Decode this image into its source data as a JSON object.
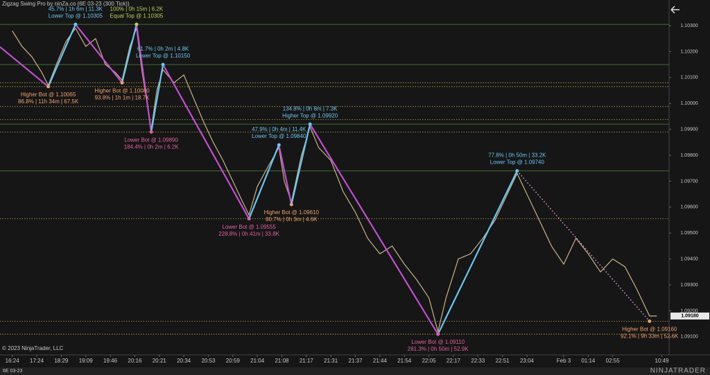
{
  "header": {
    "title": "Zigzag Swing Pro by ninZa.co (6E 03-23 (300 Tick))",
    "copyright": "© 2023 NinjaTrader, LLC",
    "tab": "6E 03-23",
    "logo": "NINJATRADER"
  },
  "chart_data": {
    "type": "line",
    "xlim": [
      -0.5,
      26.8
    ],
    "ylim": [
      1.0903,
      1.10399
    ],
    "xticks": [
      {
        "value": 0,
        "label": "16:24"
      },
      {
        "value": 1,
        "label": "17:24"
      },
      {
        "value": 2,
        "label": "18:29"
      },
      {
        "value": 3,
        "label": "19:09"
      },
      {
        "value": 4,
        "label": "19:46"
      },
      {
        "value": 5,
        "label": "20:16"
      },
      {
        "value": 6,
        "label": "20:21"
      },
      {
        "value": 7,
        "label": "20:34"
      },
      {
        "value": 8,
        "label": "20:53"
      },
      {
        "value": 9,
        "label": "20:59"
      },
      {
        "value": 10,
        "label": "21:04"
      },
      {
        "value": 11,
        "label": "21:08"
      },
      {
        "value": 12,
        "label": "21:17"
      },
      {
        "value": 13,
        "label": "21:31"
      },
      {
        "value": 14,
        "label": "21:37"
      },
      {
        "value": 15,
        "label": "21:44"
      },
      {
        "value": 16,
        "label": "21:54"
      },
      {
        "value": 17,
        "label": "22:05"
      },
      {
        "value": 18,
        "label": "22:17"
      },
      {
        "value": 19,
        "label": "22:33"
      },
      {
        "value": 20,
        "label": "22:51"
      },
      {
        "value": 21,
        "label": "23:04"
      },
      {
        "value": 22.5,
        "label": "Feb 3"
      },
      {
        "value": 23.5,
        "label": "01:14"
      },
      {
        "value": 24.5,
        "label": "02:55"
      },
      {
        "value": 26.5,
        "label": "10:49"
      }
    ],
    "yticks": [
      {
        "value": 1.103,
        "label": "1.10300"
      },
      {
        "value": 1.102,
        "label": "1.10200"
      },
      {
        "value": 1.101,
        "label": "1.10100"
      },
      {
        "value": 1.1,
        "label": "1.10000"
      },
      {
        "value": 1.099,
        "label": "1.09900"
      },
      {
        "value": 1.098,
        "label": "1.09800"
      },
      {
        "value": 1.097,
        "label": "1.09700"
      },
      {
        "value": 1.096,
        "label": "1.09600"
      },
      {
        "value": 1.095,
        "label": "1.09500"
      },
      {
        "value": 1.094,
        "label": "1.09400"
      },
      {
        "value": 1.093,
        "label": "1.09300"
      },
      {
        "value": 1.092,
        "label": "1.09200"
      },
      {
        "value": 1.091,
        "label": "1.09100"
      }
    ],
    "last_price": {
      "value": 1.0918,
      "label": "1.09180"
    },
    "price": {
      "color": "#c8b48a",
      "x": [
        0,
        0.4,
        0.8,
        1.2,
        1.47,
        1.8,
        2.2,
        2.58,
        3.0,
        3.4,
        3.8,
        4.2,
        4.48,
        4.8,
        5.07,
        5.3,
        5.67,
        5.9,
        6.15,
        6.6,
        7.0,
        7.4,
        7.8,
        8.2,
        8.6,
        9.0,
        9.4,
        9.66,
        10.0,
        10.4,
        10.88,
        11.1,
        11.39,
        11.8,
        12.15,
        12.5,
        13.0,
        13.5,
        14.0,
        14.5,
        15.0,
        15.5,
        16.0,
        16.5,
        17.0,
        17.37,
        17.7,
        18.2,
        18.7,
        19.2,
        19.7,
        20.2,
        20.6,
        21.0,
        21.5,
        22.0,
        22.5,
        23.0,
        23.5,
        24.0,
        24.5,
        25.0,
        25.5,
        26.0,
        26.3
      ],
      "values": [
        1.1028,
        1.1022,
        1.1018,
        1.1012,
        1.1007,
        1.1015,
        1.1024,
        1.1029,
        1.1022,
        1.1025,
        1.1015,
        1.1012,
        1.1009,
        1.1022,
        1.1029,
        1.1012,
        1.099,
        1.1005,
        1.1013,
        1.1008,
        1.1011,
        1.1002,
        1.0993,
        1.0985,
        1.0978,
        1.097,
        1.0962,
        1.0957,
        1.0968,
        1.0975,
        1.0983,
        1.097,
        1.0962,
        1.098,
        1.0991,
        1.0983,
        1.0978,
        1.0966,
        1.0958,
        1.0948,
        1.0942,
        1.0945,
        1.0938,
        1.0932,
        1.0925,
        1.0912,
        1.0925,
        1.094,
        1.0942,
        1.0948,
        1.0955,
        1.0965,
        1.0973,
        1.0965,
        1.0955,
        1.0945,
        1.0938,
        1.0948,
        1.0942,
        1.0935,
        1.094,
        1.0937,
        1.0928,
        1.0918,
        1.0918
      ]
    },
    "swings": {
      "up_color": "#6cc5f0",
      "down_color": "#c050d0",
      "last_leg_style": "dotted",
      "x": [
        -0.5,
        1.47,
        2.58,
        4.48,
        5.07,
        5.67,
        6.15,
        9.66,
        10.88,
        11.39,
        12.15,
        17.37,
        20.6,
        26.0
      ],
      "values": [
        1.10218,
        1.10065,
        1.10305,
        1.1008,
        1.10305,
        1.0989,
        1.1015,
        1.09555,
        1.0984,
        1.0961,
        1.0992,
        1.0911,
        1.0974,
        1.0916
      ],
      "point_labels": [
        null,
        [
          "Higher Bot @ 1.10065",
          "86.8% | 11h 34m | 67.5K"
        ],
        [
          "45.7% | 1h 6m | 11.3K",
          "Lower Top @ 1.10305"
        ],
        [
          "Higher Bot @ 1.10080",
          "93.8% | 1h 1m | 18.7K"
        ],
        [
          "100% | 0h 15m | 6.2K",
          "Equal Top @ 1.10305"
        ],
        [
          "Lower Bot @ 1.09890",
          "184.4% | 0h 2m | 6.2K"
        ],
        [
          "61.7% | 0h 2m | 4.8K",
          "Lower Top @ 1.10150"
        ],
        [
          "Lower Bot @ 1.09555",
          "228.8% | 0h 41m | 33.8K"
        ],
        [
          "47.9% | 0h 4m | 11.4K",
          "Lower Top @ 1.09840"
        ],
        [
          "Higher Bot @ 1.09610",
          "80.7% | 0h 3m | 4.6K"
        ],
        [
          "134.8% | 0h 8m | 7.3K",
          "Higher Top @ 1.09920"
        ],
        [
          "Lower Bot @ 1.09110",
          "261.3% | 0h 50m | 52.9K"
        ],
        [
          "77.8% | 0h 50m | 33.2K",
          "Lower Top @ 1.09740"
        ],
        [
          "Higher Bot @ 1.09160",
          "92.1% | 9h 33m | 52.6K"
        ]
      ],
      "point_label_colors": [
        null,
        "#f0a070",
        "#6cc5f0",
        "#f0a070",
        "#b5d55a",
        "#e060a0",
        "#6cc5f0",
        "#e060a0",
        "#6cc5f0",
        "#f0a070",
        "#6cc5f0",
        "#e060a0",
        "#6cc5f0",
        "#f0a070"
      ]
    },
    "top_levels": {
      "color": "#4e8a3a",
      "values": [
        1.10305,
        1.1015,
        1.0992,
        1.0974
      ]
    },
    "bottom_levels": {
      "color": "#b8a048",
      "values": [
        1.10065,
        1.1008,
        1.09988,
        1.09938,
        1.0989,
        1.09555,
        1.0916,
        1.0911
      ]
    }
  }
}
